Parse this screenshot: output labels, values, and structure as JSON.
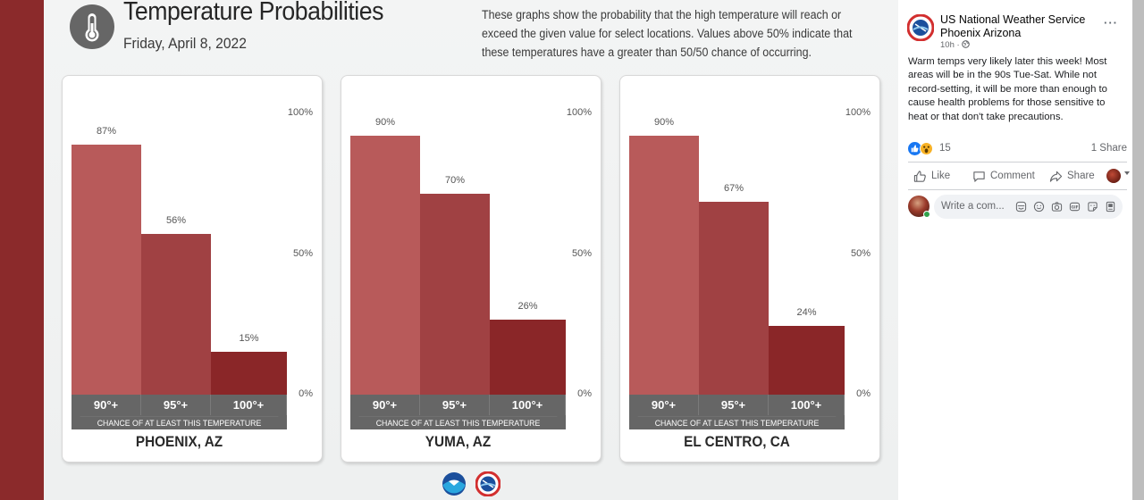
{
  "graphic": {
    "title": "Temperature Probabilities",
    "date": "Friday, April 8, 2022",
    "description": "These graphs show the probability that the high temperature will reach or exceed the given value for select locations. Values above 50% indicate that these temperatures have a greater than 50/50 chance of occurring.",
    "icon": "thermometer-icon",
    "logos": [
      "noaa-logo",
      "nws-logo"
    ],
    "colors": {
      "bar_90": "#b85a5a",
      "bar_95": "#a04143",
      "bar_100": "#8a2628",
      "category_strip": "#666666",
      "side_strip": "#8b2a2b"
    }
  },
  "chart_data": [
    {
      "type": "bar",
      "title": "PHOENIX, AZ",
      "categories": [
        "90°+",
        "95°+",
        "100°+"
      ],
      "values": [
        87,
        56,
        15
      ],
      "value_labels": [
        "87%",
        "56%",
        "15%"
      ],
      "xlabel": "CHANCE OF AT LEAST THIS TEMPERATURE",
      "ylabel": "",
      "ylim": [
        0,
        100
      ],
      "yticks": [
        "100%",
        "50%",
        "0%"
      ],
      "grid": false
    },
    {
      "type": "bar",
      "title": "YUMA, AZ",
      "categories": [
        "90°+",
        "95°+",
        "100°+"
      ],
      "values": [
        90,
        70,
        26
      ],
      "value_labels": [
        "90%",
        "70%",
        "26%"
      ],
      "xlabel": "CHANCE OF AT LEAST THIS TEMPERATURE",
      "ylabel": "",
      "ylim": [
        0,
        100
      ],
      "yticks": [
        "100%",
        "50%",
        "0%"
      ],
      "grid": false
    },
    {
      "type": "bar",
      "title": "EL CENTRO, CA",
      "categories": [
        "90°+",
        "95°+",
        "100°+"
      ],
      "values": [
        90,
        67,
        24
      ],
      "value_labels": [
        "90%",
        "67%",
        "24%"
      ],
      "xlabel": "CHANCE OF AT LEAST THIS TEMPERATURE",
      "ylabel": "",
      "ylim": [
        0,
        100
      ],
      "yticks": [
        "100%",
        "50%",
        "0%"
      ],
      "grid": false
    }
  ],
  "post": {
    "page_name": "US National Weather Service Phoenix Arizona",
    "time": "10h ·",
    "audience_icon": "globe-icon",
    "more_label": "···",
    "text": "Warm temps very likely later this week! Most areas will be in the 90s Tue-Sat. While not record-setting, it will be more than enough to cause health problems for those sensitive to heat or that don't take precautions.",
    "reaction_count": "15",
    "share_count": "1 Share",
    "actions": {
      "like": "Like",
      "comment": "Comment",
      "share": "Share"
    },
    "comment_placeholder": "Write a com..."
  }
}
